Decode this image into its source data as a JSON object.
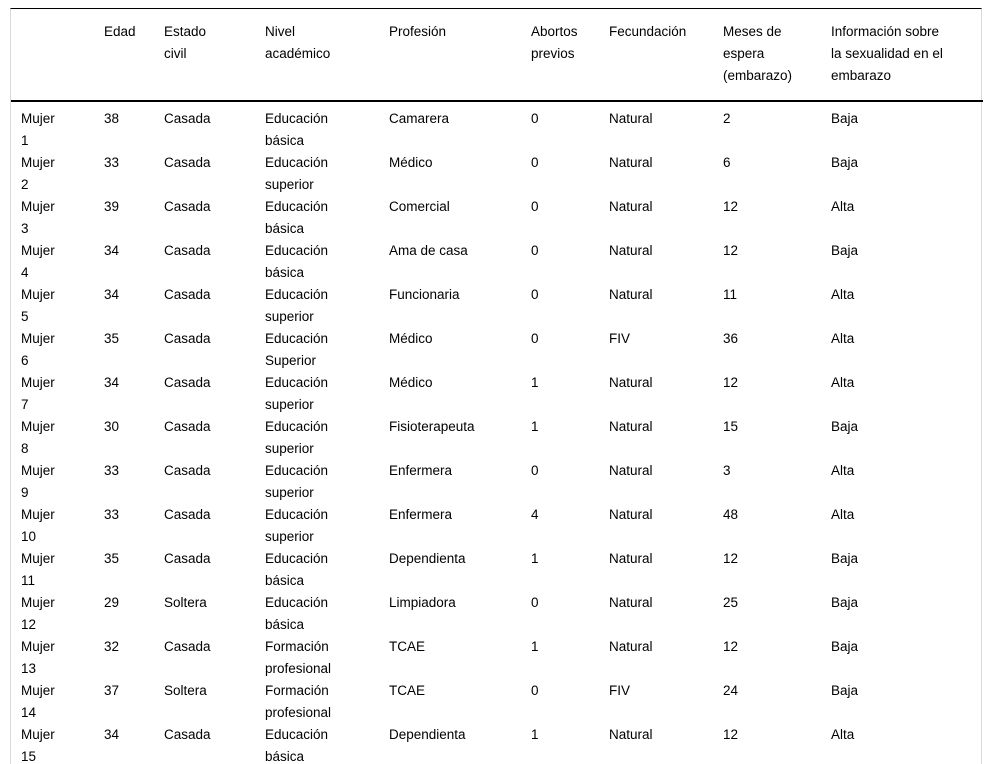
{
  "colors": {
    "background": "#ffffff",
    "text": "#000000",
    "rule_heavy": "#000000",
    "rule_light": "#d9d9d9"
  },
  "table": {
    "columns": [
      "",
      "Edad",
      "Estado civil",
      "Nivel académico",
      "Profesión",
      "Abortos previos",
      "Fecundación",
      "Meses de espera (embarazo)",
      "Información sobre la sexualidad en el embarazo"
    ],
    "column_keys": [
      "participant",
      "edad",
      "estado-civil",
      "nivel-academico",
      "profesion",
      "abortos-previos",
      "fecundacion",
      "meses-espera",
      "informacion-sexualidad"
    ],
    "rows": [
      [
        "Mujer 1",
        "38",
        "Casada",
        "Educación básica",
        "Camarera",
        "0",
        "Natural",
        "2",
        "Baja"
      ],
      [
        "Mujer 2",
        "33",
        "Casada",
        "Educación superior",
        "Médico",
        "0",
        "Natural",
        "6",
        "Baja"
      ],
      [
        "Mujer 3",
        "39",
        "Casada",
        "Educación básica",
        "Comercial",
        "0",
        "Natural",
        "12",
        "Alta"
      ],
      [
        "Mujer 4",
        "34",
        "Casada",
        "Educación básica",
        "Ama de casa",
        "0",
        "Natural",
        "12",
        "Baja"
      ],
      [
        "Mujer 5",
        "34",
        "Casada",
        "Educación superior",
        "Funcionaria",
        "0",
        "Natural",
        "11",
        "Alta"
      ],
      [
        "Mujer 6",
        "35",
        "Casada",
        "Educación Superior",
        "Médico",
        "0",
        "FIV",
        "36",
        "Alta"
      ],
      [
        "Mujer 7",
        "34",
        "Casada",
        "Educación superior",
        "Médico",
        "1",
        "Natural",
        "12",
        "Alta"
      ],
      [
        "Mujer 8",
        "30",
        "Casada",
        "Educación superior",
        "Fisioterapeuta",
        "1",
        "Natural",
        "15",
        "Baja"
      ],
      [
        "Mujer 9",
        "33",
        "Casada",
        "Educación superior",
        "Enfermera",
        "0",
        "Natural",
        "3",
        "Alta"
      ],
      [
        "Mujer 10",
        "33",
        "Casada",
        "Educación superior",
        "Enfermera",
        "4",
        "Natural",
        "48",
        "Alta"
      ],
      [
        "Mujer 11",
        "35",
        "Casada",
        "Educación básica",
        "Dependienta",
        "1",
        "Natural",
        "12",
        "Baja"
      ],
      [
        "Mujer 12",
        "29",
        "Soltera",
        "Educación básica",
        "Limpiadora",
        "0",
        "Natural",
        "25",
        "Baja"
      ],
      [
        "Mujer 13",
        "32",
        "Casada",
        "Formación profesional",
        "TCAE",
        "1",
        "Natural",
        "12",
        "Baja"
      ],
      [
        "Mujer 14",
        "37",
        "Soltera",
        "Formación profesional",
        "TCAE",
        "0",
        "FIV",
        "24",
        "Baja"
      ],
      [
        "Mujer 15",
        "34",
        "Casada",
        "Educación básica",
        "Dependienta",
        "1",
        "Natural",
        "12",
        "Alta"
      ]
    ]
  }
}
